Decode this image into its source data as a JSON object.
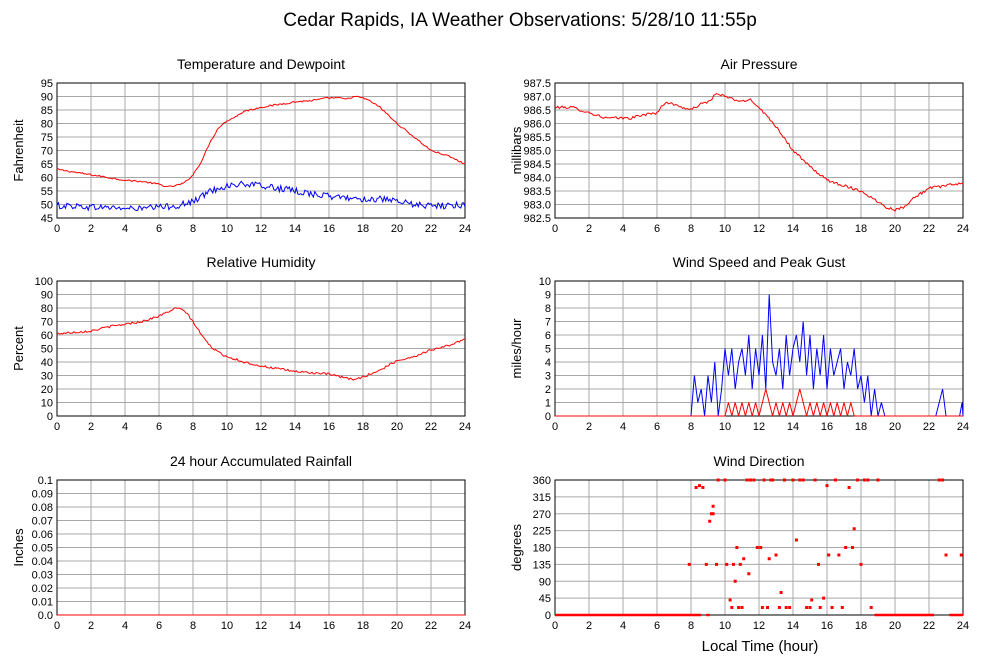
{
  "page_title": "Cedar Rapids, IA Weather Observations: 5/28/10 11:55p",
  "footer_xlabel": "Local Time (hour)",
  "chart_data": [
    {
      "id": "temp",
      "type": "line",
      "title": "Temperature and Dewpoint",
      "ylabel": "Fahrenheit",
      "xlabel": "",
      "xlim": [
        0,
        24
      ],
      "ylim": [
        45,
        95
      ],
      "xticks": [
        0,
        2,
        4,
        6,
        8,
        10,
        12,
        14,
        16,
        18,
        20,
        22,
        24
      ],
      "yticks": [
        45,
        50,
        55,
        60,
        65,
        70,
        75,
        80,
        85,
        90,
        95
      ],
      "grid": true,
      "series": [
        {
          "color": "#ff0000",
          "noise": 0.3,
          "x": [
            0,
            1,
            2,
            3,
            4,
            5,
            6,
            6.5,
            7,
            7.5,
            8,
            8.5,
            9,
            9.5,
            10,
            10.5,
            11,
            12,
            13,
            14,
            15,
            16,
            16.5,
            17,
            17.5,
            18,
            18.5,
            19,
            20,
            21,
            22,
            23,
            24
          ],
          "values": [
            63,
            62,
            61,
            60,
            59,
            58.5,
            57.5,
            56.5,
            57,
            58,
            61,
            66,
            73,
            78.5,
            81,
            82.5,
            84.5,
            86,
            87,
            88,
            88.5,
            89.5,
            89.5,
            89,
            90,
            89.5,
            88,
            86,
            80,
            75,
            70,
            68,
            65
          ]
        },
        {
          "color": "#0000ff",
          "noise": 1.2,
          "x": [
            0,
            1,
            2,
            3,
            4,
            5,
            6,
            7,
            8,
            8.5,
            9,
            9.5,
            10,
            11,
            12,
            13,
            14,
            15,
            16,
            17,
            18,
            19,
            20,
            21,
            22,
            23,
            24
          ],
          "values": [
            49.5,
            49.5,
            49,
            49,
            48.5,
            48.5,
            49,
            49.5,
            51,
            53,
            55,
            56,
            57,
            57.5,
            57,
            56,
            55,
            54,
            53,
            52.5,
            52,
            52,
            51,
            50,
            49.5,
            49.5,
            50
          ]
        }
      ]
    },
    {
      "id": "pressure",
      "type": "line",
      "title": "Air Pressure",
      "ylabel": "millibars",
      "xlabel": "",
      "xlim": [
        0,
        24
      ],
      "ylim": [
        982.5,
        987.5
      ],
      "xticks": [
        0,
        2,
        4,
        6,
        8,
        10,
        12,
        14,
        16,
        18,
        20,
        22,
        24
      ],
      "yticks": [
        "982.5",
        "983.0",
        "983.5",
        "984.0",
        "984.5",
        "985.0",
        "985.5",
        "986.0",
        "986.5",
        "987.0",
        "987.5"
      ],
      "grid": true,
      "series": [
        {
          "color": "#ff0000",
          "noise": 0.05,
          "x": [
            0,
            1,
            2,
            3,
            4,
            4.5,
            5,
            6,
            6.5,
            7,
            7.5,
            8,
            8.5,
            9,
            9.5,
            10,
            10.5,
            11,
            11.5,
            12,
            13,
            14,
            15,
            16,
            17,
            18,
            19,
            19.5,
            20,
            20.5,
            21,
            22,
            23,
            24
          ],
          "values": [
            986.6,
            986.6,
            986.4,
            986.2,
            986.2,
            986.2,
            986.3,
            986.4,
            986.8,
            986.7,
            986.6,
            986.5,
            986.7,
            986.8,
            987.1,
            987.0,
            986.9,
            986.8,
            986.9,
            986.6,
            985.9,
            985.0,
            984.4,
            983.9,
            983.7,
            983.5,
            983.1,
            982.9,
            982.8,
            982.9,
            983.2,
            983.6,
            983.7,
            983.8
          ]
        }
      ]
    },
    {
      "id": "rh",
      "type": "line",
      "title": "Relative Humidity",
      "ylabel": "Percent",
      "xlabel": "",
      "xlim": [
        0,
        24
      ],
      "ylim": [
        0,
        100
      ],
      "xticks": [
        0,
        2,
        4,
        6,
        8,
        10,
        12,
        14,
        16,
        18,
        20,
        22,
        24
      ],
      "yticks": [
        0,
        10,
        20,
        30,
        40,
        50,
        60,
        70,
        80,
        90,
        100
      ],
      "grid": true,
      "series": [
        {
          "color": "#ff0000",
          "noise": 0.8,
          "x": [
            0,
            1,
            2,
            3,
            4,
            5,
            6,
            6.5,
            7,
            7.5,
            8,
            8.5,
            9,
            9.5,
            10,
            11,
            12,
            13,
            14,
            15,
            16,
            17,
            17.5,
            18,
            19,
            20,
            21,
            22,
            23,
            24
          ],
          "values": [
            61,
            62,
            63,
            66,
            68,
            70,
            74,
            77,
            80,
            78,
            70,
            60,
            52,
            47,
            44,
            40,
            37,
            35,
            33,
            32,
            31,
            28,
            27,
            29,
            34,
            41,
            44,
            49,
            52,
            57
          ]
        }
      ]
    },
    {
      "id": "wind_speed",
      "type": "line",
      "title": "Wind Speed and Peak Gust",
      "ylabel": "miles/hour",
      "xlabel": "",
      "xlim": [
        0,
        24
      ],
      "ylim": [
        0,
        10
      ],
      "xticks": [
        0,
        2,
        4,
        6,
        8,
        10,
        12,
        14,
        16,
        18,
        20,
        22,
        24
      ],
      "yticks": [
        0,
        1,
        2,
        3,
        4,
        5,
        6,
        7,
        8,
        9,
        10
      ],
      "grid": true,
      "series": [
        {
          "color": "#0000ff",
          "x": [
            0,
            8.0,
            8.2,
            8.4,
            8.6,
            8.8,
            9.0,
            9.2,
            9.4,
            9.6,
            9.8,
            10.0,
            10.2,
            10.4,
            10.6,
            10.8,
            11.0,
            11.2,
            11.4,
            11.6,
            11.8,
            12.0,
            12.2,
            12.4,
            12.6,
            12.8,
            13.0,
            13.2,
            13.4,
            13.6,
            13.8,
            14.0,
            14.2,
            14.4,
            14.6,
            14.8,
            15.0,
            15.2,
            15.4,
            15.6,
            15.8,
            16.0,
            16.2,
            16.4,
            16.6,
            16.8,
            17.0,
            17.2,
            17.4,
            17.6,
            17.8,
            18.0,
            18.2,
            18.4,
            18.6,
            18.8,
            19.0,
            19.2,
            19.4,
            22.4,
            22.6,
            22.8,
            23.0,
            23.8,
            23.95,
            24
          ],
          "values": [
            0,
            0,
            3,
            1,
            2,
            0,
            3,
            1,
            4,
            0,
            2,
            5,
            3,
            5,
            2,
            4,
            5,
            3,
            6,
            2,
            5,
            3,
            6,
            2,
            9,
            4,
            3,
            5,
            2,
            6,
            3,
            5,
            6,
            4,
            7,
            3,
            6,
            2,
            5,
            3,
            6,
            2,
            5,
            3,
            4,
            5,
            2,
            4,
            3,
            5,
            2,
            3,
            1,
            3,
            0,
            2,
            0,
            1,
            0,
            0,
            1,
            2,
            0,
            0,
            1,
            0
          ]
        },
        {
          "color": "#ff0000",
          "x": [
            0,
            10.0,
            10.2,
            10.4,
            10.6,
            10.8,
            11.0,
            11.2,
            11.4,
            11.6,
            11.8,
            12.0,
            12.2,
            12.4,
            12.6,
            12.8,
            13.0,
            13.2,
            13.4,
            13.6,
            13.8,
            14.0,
            14.2,
            14.4,
            14.6,
            14.8,
            15.0,
            15.2,
            15.4,
            15.6,
            15.8,
            16.0,
            16.2,
            16.4,
            16.6,
            16.8,
            17.0,
            17.2,
            17.4,
            17.6,
            24
          ],
          "values": [
            0,
            0,
            1,
            0,
            1,
            0,
            1,
            0,
            1,
            0,
            1,
            0,
            1,
            2,
            1,
            0,
            1,
            0,
            1,
            0,
            1,
            0,
            1,
            2,
            1,
            0,
            1,
            0,
            1,
            0,
            1,
            0,
            1,
            0,
            1,
            0,
            1,
            0,
            1,
            0,
            0
          ]
        }
      ]
    },
    {
      "id": "rain",
      "type": "line",
      "title": "24 hour Accumulated Rainfall",
      "ylabel": "Inches",
      "xlabel": "",
      "xlim": [
        0,
        24
      ],
      "ylim": [
        0,
        0.1
      ],
      "xticks": [
        0,
        2,
        4,
        6,
        8,
        10,
        12,
        14,
        16,
        18,
        20,
        22,
        24
      ],
      "yticks": [
        "0.0",
        "0.01",
        "0.02",
        "0.03",
        "0.04",
        "0.05",
        "0.06",
        "0.07",
        "0.08",
        "0.09",
        "0.1"
      ],
      "grid": true,
      "series": [
        {
          "color": "#ff0000",
          "x": [
            0,
            24
          ],
          "values": [
            0,
            0
          ]
        }
      ]
    },
    {
      "id": "wind_dir",
      "type": "scatter",
      "title": "Wind Direction",
      "ylabel": "degrees",
      "xlabel": "Local Time (hour)",
      "xlim": [
        0,
        24
      ],
      "ylim": [
        0,
        360
      ],
      "xticks": [
        0,
        2,
        4,
        6,
        8,
        10,
        12,
        14,
        16,
        18,
        20,
        22,
        24
      ],
      "yticks": [
        0,
        45,
        90,
        135,
        180,
        225,
        270,
        315,
        360
      ],
      "grid": true,
      "series": [
        {
          "color": "#ff0000",
          "calm_segments": [
            [
              0,
              8.6
            ],
            [
              8.9,
              9.1
            ],
            [
              18.8,
              22.3
            ],
            [
              23.2,
              24
            ]
          ],
          "x": [
            7.9,
            8.3,
            8.5,
            8.7,
            8.9,
            9.1,
            9.2,
            9.3,
            9.3,
            9.5,
            9.6,
            10.0,
            10.1,
            10.3,
            10.4,
            10.5,
            10.6,
            10.7,
            10.8,
            10.9,
            11.0,
            11.1,
            11.3,
            11.4,
            11.5,
            11.7,
            11.9,
            12.1,
            12.2,
            12.3,
            12.5,
            12.6,
            12.7,
            12.8,
            13.0,
            13.2,
            13.3,
            13.5,
            13.6,
            13.8,
            14.0,
            14.2,
            14.4,
            14.6,
            14.8,
            15.0,
            15.1,
            15.3,
            15.5,
            15.6,
            15.8,
            16.0,
            16.1,
            16.3,
            16.5,
            16.7,
            16.9,
            17.1,
            17.3,
            17.5,
            17.6,
            17.8,
            18.0,
            18.2,
            18.4,
            18.6,
            19.0,
            22.6,
            22.8,
            23.0,
            23.9
          ],
          "values": [
            135,
            340,
            345,
            340,
            135,
            250,
            270,
            290,
            270,
            135,
            360,
            360,
            135,
            40,
            20,
            135,
            90,
            180,
            20,
            135,
            20,
            150,
            360,
            110,
            360,
            360,
            180,
            180,
            20,
            360,
            20,
            150,
            360,
            360,
            160,
            20,
            60,
            360,
            20,
            20,
            360,
            200,
            360,
            360,
            20,
            20,
            40,
            360,
            135,
            20,
            45,
            345,
            160,
            20,
            360,
            160,
            20,
            180,
            340,
            180,
            230,
            360,
            135,
            360,
            360,
            20,
            360,
            360,
            360,
            160,
            160
          ]
        }
      ]
    }
  ]
}
